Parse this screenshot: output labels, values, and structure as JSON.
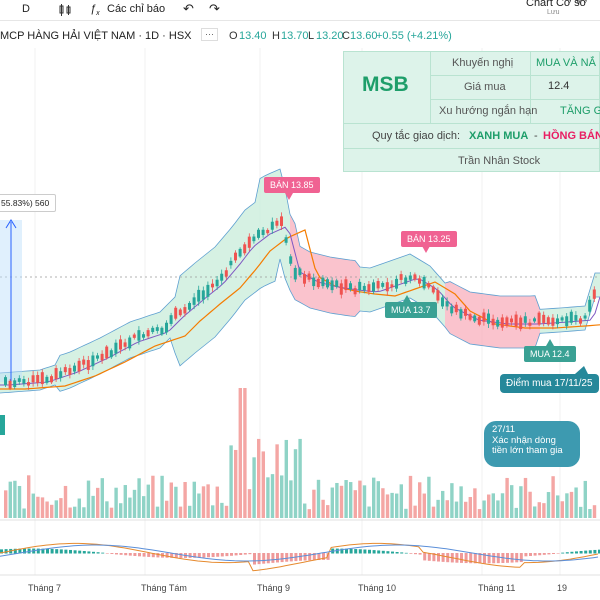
{
  "toolbar": {
    "interval": "D",
    "indicators_label": "Các chỉ báo",
    "chart_title": "Chart Cơ sở",
    "chart_subtitle": "Lưu"
  },
  "legend": {
    "symbol": "MCP HÀNG HẢI VIỆT NAM · 1D · HSX",
    "o_label": "O",
    "o_value": "13.40",
    "h_label": "H",
    "h_value": "13.70",
    "l_label": "L",
    "l_value": "13.20",
    "c_label": "C",
    "c_value": "13.60",
    "change": "+0.55 (+4.21%)",
    "up_color": "#26a69a"
  },
  "info": {
    "ticker": "MSB",
    "recommendation_label": "Khuyến nghị",
    "recommendation_value": "MUA VÀ NẮ",
    "buy_price_label": "Giá mua",
    "buy_price_value": "12.4",
    "trend_label": "Xu hướng ngắn hạn",
    "trend_value": "TĂNG G",
    "rule_label": "Quy tắc giao dịch:",
    "rule_buy": "XANH MUA",
    "rule_sep": "-",
    "rule_sell": "HỒNG BÁN",
    "author": "Trần Nhân Stock",
    "buy_color": "#1e9e6a",
    "sell_color": "#e91e63"
  },
  "callouts": {
    "sell1": "BÁN 13.85",
    "sell2": "BÁN 13.25",
    "buy1": "MUA 13.7",
    "buy2": "MUA 12.4",
    "buy_point": "Điểm mua 17/11/25",
    "flow_line1": "27/11",
    "flow_line2": "Xác nhận dòng",
    "flow_line3": "tiền lớn tham gia",
    "measure": "55.83%) 560"
  },
  "x_axis": [
    "Tháng 7",
    "Tháng Tám",
    "Tháng 9",
    "Tháng 10",
    "Tháng 11",
    "19"
  ],
  "colors": {
    "up": "#26a69a",
    "down": "#ef5350",
    "band_green": "#c8ecd9",
    "band_red": "#f8a9b8",
    "ma_orange": "#f57c00",
    "ma_purple": "#7e57c2"
  }
}
